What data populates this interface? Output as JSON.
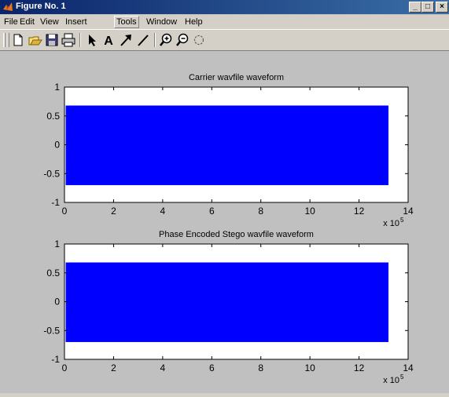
{
  "window": {
    "title": "Figure No. 1",
    "controls": {
      "minimize": "_",
      "maximize": "□",
      "close": "×"
    }
  },
  "menubar": {
    "items": [
      {
        "label": "File"
      },
      {
        "label": "Edit"
      },
      {
        "label": "View"
      },
      {
        "label": "Insert"
      },
      {
        "label": "Tools"
      },
      {
        "label": "Window"
      },
      {
        "label": "Help"
      }
    ]
  },
  "toolbar": {
    "buttons": [
      {
        "name": "new-figure-icon"
      },
      {
        "name": "open-file-icon"
      },
      {
        "name": "save-icon"
      },
      {
        "name": "print-icon"
      },
      {
        "name": "select-arrow-icon"
      },
      {
        "name": "insert-text-icon"
      },
      {
        "name": "insert-arrow-icon"
      },
      {
        "name": "insert-line-icon"
      },
      {
        "name": "zoom-in-icon"
      },
      {
        "name": "zoom-out-icon"
      },
      {
        "name": "rotate-3d-icon"
      }
    ],
    "insert_text_glyph": "A"
  },
  "colors": {
    "plot_fill": "#0000ff",
    "axes_bg": "#ffffff",
    "figure_bg": "#c0c0c0"
  },
  "chart_data": [
    {
      "type": "area",
      "title": "Carrier wavfile waveform",
      "xlabel": "",
      "ylabel": "",
      "xlim": [
        0,
        14
      ],
      "ylim": [
        -1,
        1
      ],
      "x_ticks": [
        "0",
        "2",
        "4",
        "6",
        "8",
        "10",
        "12",
        "14"
      ],
      "y_ticks": [
        "1",
        "0.5",
        "0",
        "-0.5",
        "-1"
      ],
      "x_exponent_base": "x 10",
      "x_exponent_power": "5",
      "series": [
        {
          "x_range": [
            0.05,
            13.2
          ],
          "y_min": -0.7,
          "y_max": 0.68
        }
      ]
    },
    {
      "type": "area",
      "title": "Phase Encoded Stego wavfile waveform",
      "xlabel": "",
      "ylabel": "",
      "xlim": [
        0,
        14
      ],
      "ylim": [
        -1,
        1
      ],
      "x_ticks": [
        "0",
        "2",
        "4",
        "6",
        "8",
        "10",
        "12",
        "14"
      ],
      "y_ticks": [
        "1",
        "0.5",
        "0",
        "-0.5",
        "-1"
      ],
      "x_exponent_base": "x 10",
      "x_exponent_power": "5",
      "series": [
        {
          "x_range": [
            0.05,
            13.2
          ],
          "y_min": -0.7,
          "y_max": 0.68
        }
      ]
    }
  ]
}
